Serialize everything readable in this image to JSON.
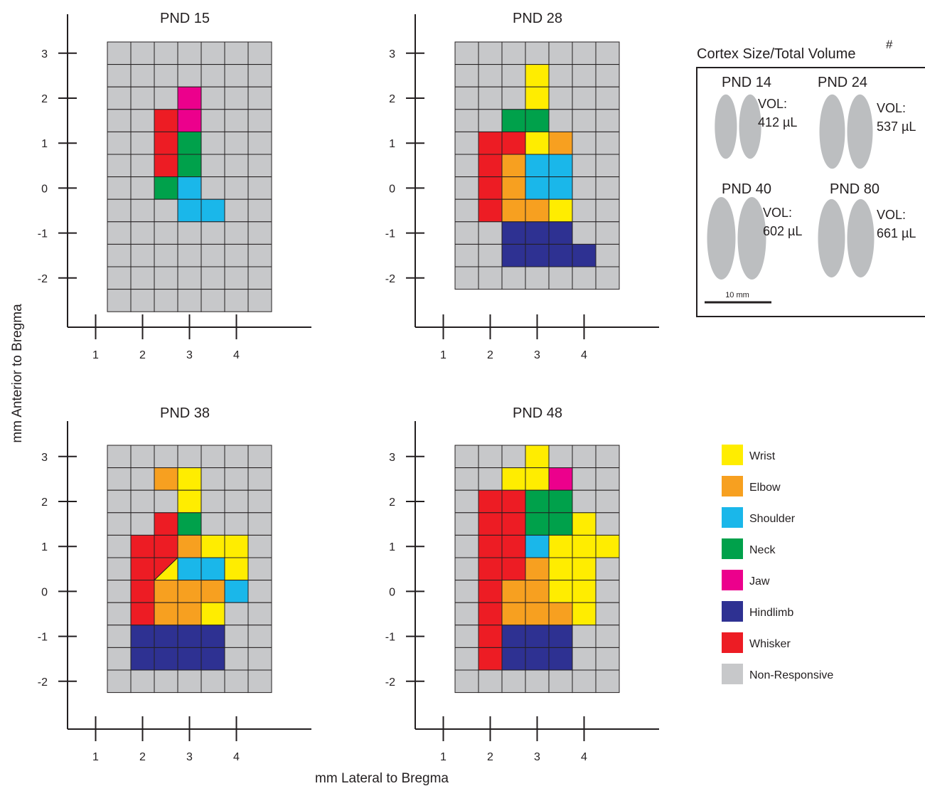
{
  "colors": {
    "Wrist": "#ffed00",
    "Elbow": "#f7a020",
    "Shoulder": "#1ab7ea",
    "Neck": "#00a14b",
    "Jaw": "#ec008c",
    "Hindlimb": "#2e3192",
    "Whisker": "#ed1c24",
    "Non-Responsive": "#c7c8ca"
  },
  "chart_data": {
    "type": "heatmap",
    "xlabel": "mm Lateral to Bregma",
    "ylabel": "mm Anterior to Bregma",
    "x_ticks": [
      "1",
      "2",
      "3",
      "4"
    ],
    "y_ticks": [
      "3",
      "2",
      "1",
      "0",
      "-1",
      "-2"
    ],
    "grid_note": "cells 0.5 mm; columns start at 1.25 mm lateral, rows start at 3.25 mm anterior",
    "legend": [
      "Wrist",
      "Elbow",
      "Shoulder",
      "Neck",
      "Jaw",
      "Hindlimb",
      "Whisker",
      "Non-Responsive"
    ],
    "panels": [
      {
        "title": "PND 15",
        "cells": [
          "N N N N N N N",
          "N N N N N N N",
          "N N N J N N N",
          "N N R J N N N",
          "N N R G N N N",
          "N N R G N N N",
          "N N G S N N N",
          "N N N S S N N",
          "N N N N N N N",
          "N N N N N N N",
          "N N N N N N N",
          "N N N N N N N"
        ]
      },
      {
        "title": "PND 28",
        "cells": [
          "N N N N N N N",
          "N N N W N N N",
          "N N N W N N N",
          "N N G G N N N",
          "N R R W E N N",
          "N R E S S N N",
          "N R E S S N N",
          "N R E E W N N",
          "N N H H H N N",
          "N N H H H H N",
          "N N N N N N N",
          "."
        ]
      },
      {
        "title": "PND 38",
        "cells": [
          "N N N N N N N",
          "N N E W N N N",
          "N N N W N N N",
          "N N R G N N N",
          "N R R E W W N",
          "N R R/W S S W N",
          "N R E E E S N",
          "N R E E W N N",
          "N H H H H N N",
          "N H H H H N N",
          "N N N N N N N",
          "."
        ]
      },
      {
        "title": "PND 48",
        "cells": [
          "N N N W N N N",
          "N N W W J N N",
          "N R R G G N N",
          "N R R G G W N",
          "N R R S W W W",
          "N R R E W W N",
          "N R E E W W N",
          "N R E E E W N",
          "N R H H H N N",
          "N R H H H N N",
          "N N N N N N N",
          "."
        ]
      }
    ]
  },
  "inset": {
    "title": "Cortex Size/Total Volume",
    "title_mark": "#",
    "vol_label": "VOL:",
    "items": [
      {
        "age": "PND 14",
        "volume": "412 µL",
        "scale": 0.78
      },
      {
        "age": "PND 24",
        "volume": "537 µL",
        "scale": 0.9
      },
      {
        "age": "PND 40",
        "volume": "602 µL",
        "scale": 1.0
      },
      {
        "age": "PND 80",
        "volume": "661 µL",
        "scale": 0.95
      }
    ],
    "scale_bar": "10 mm"
  }
}
